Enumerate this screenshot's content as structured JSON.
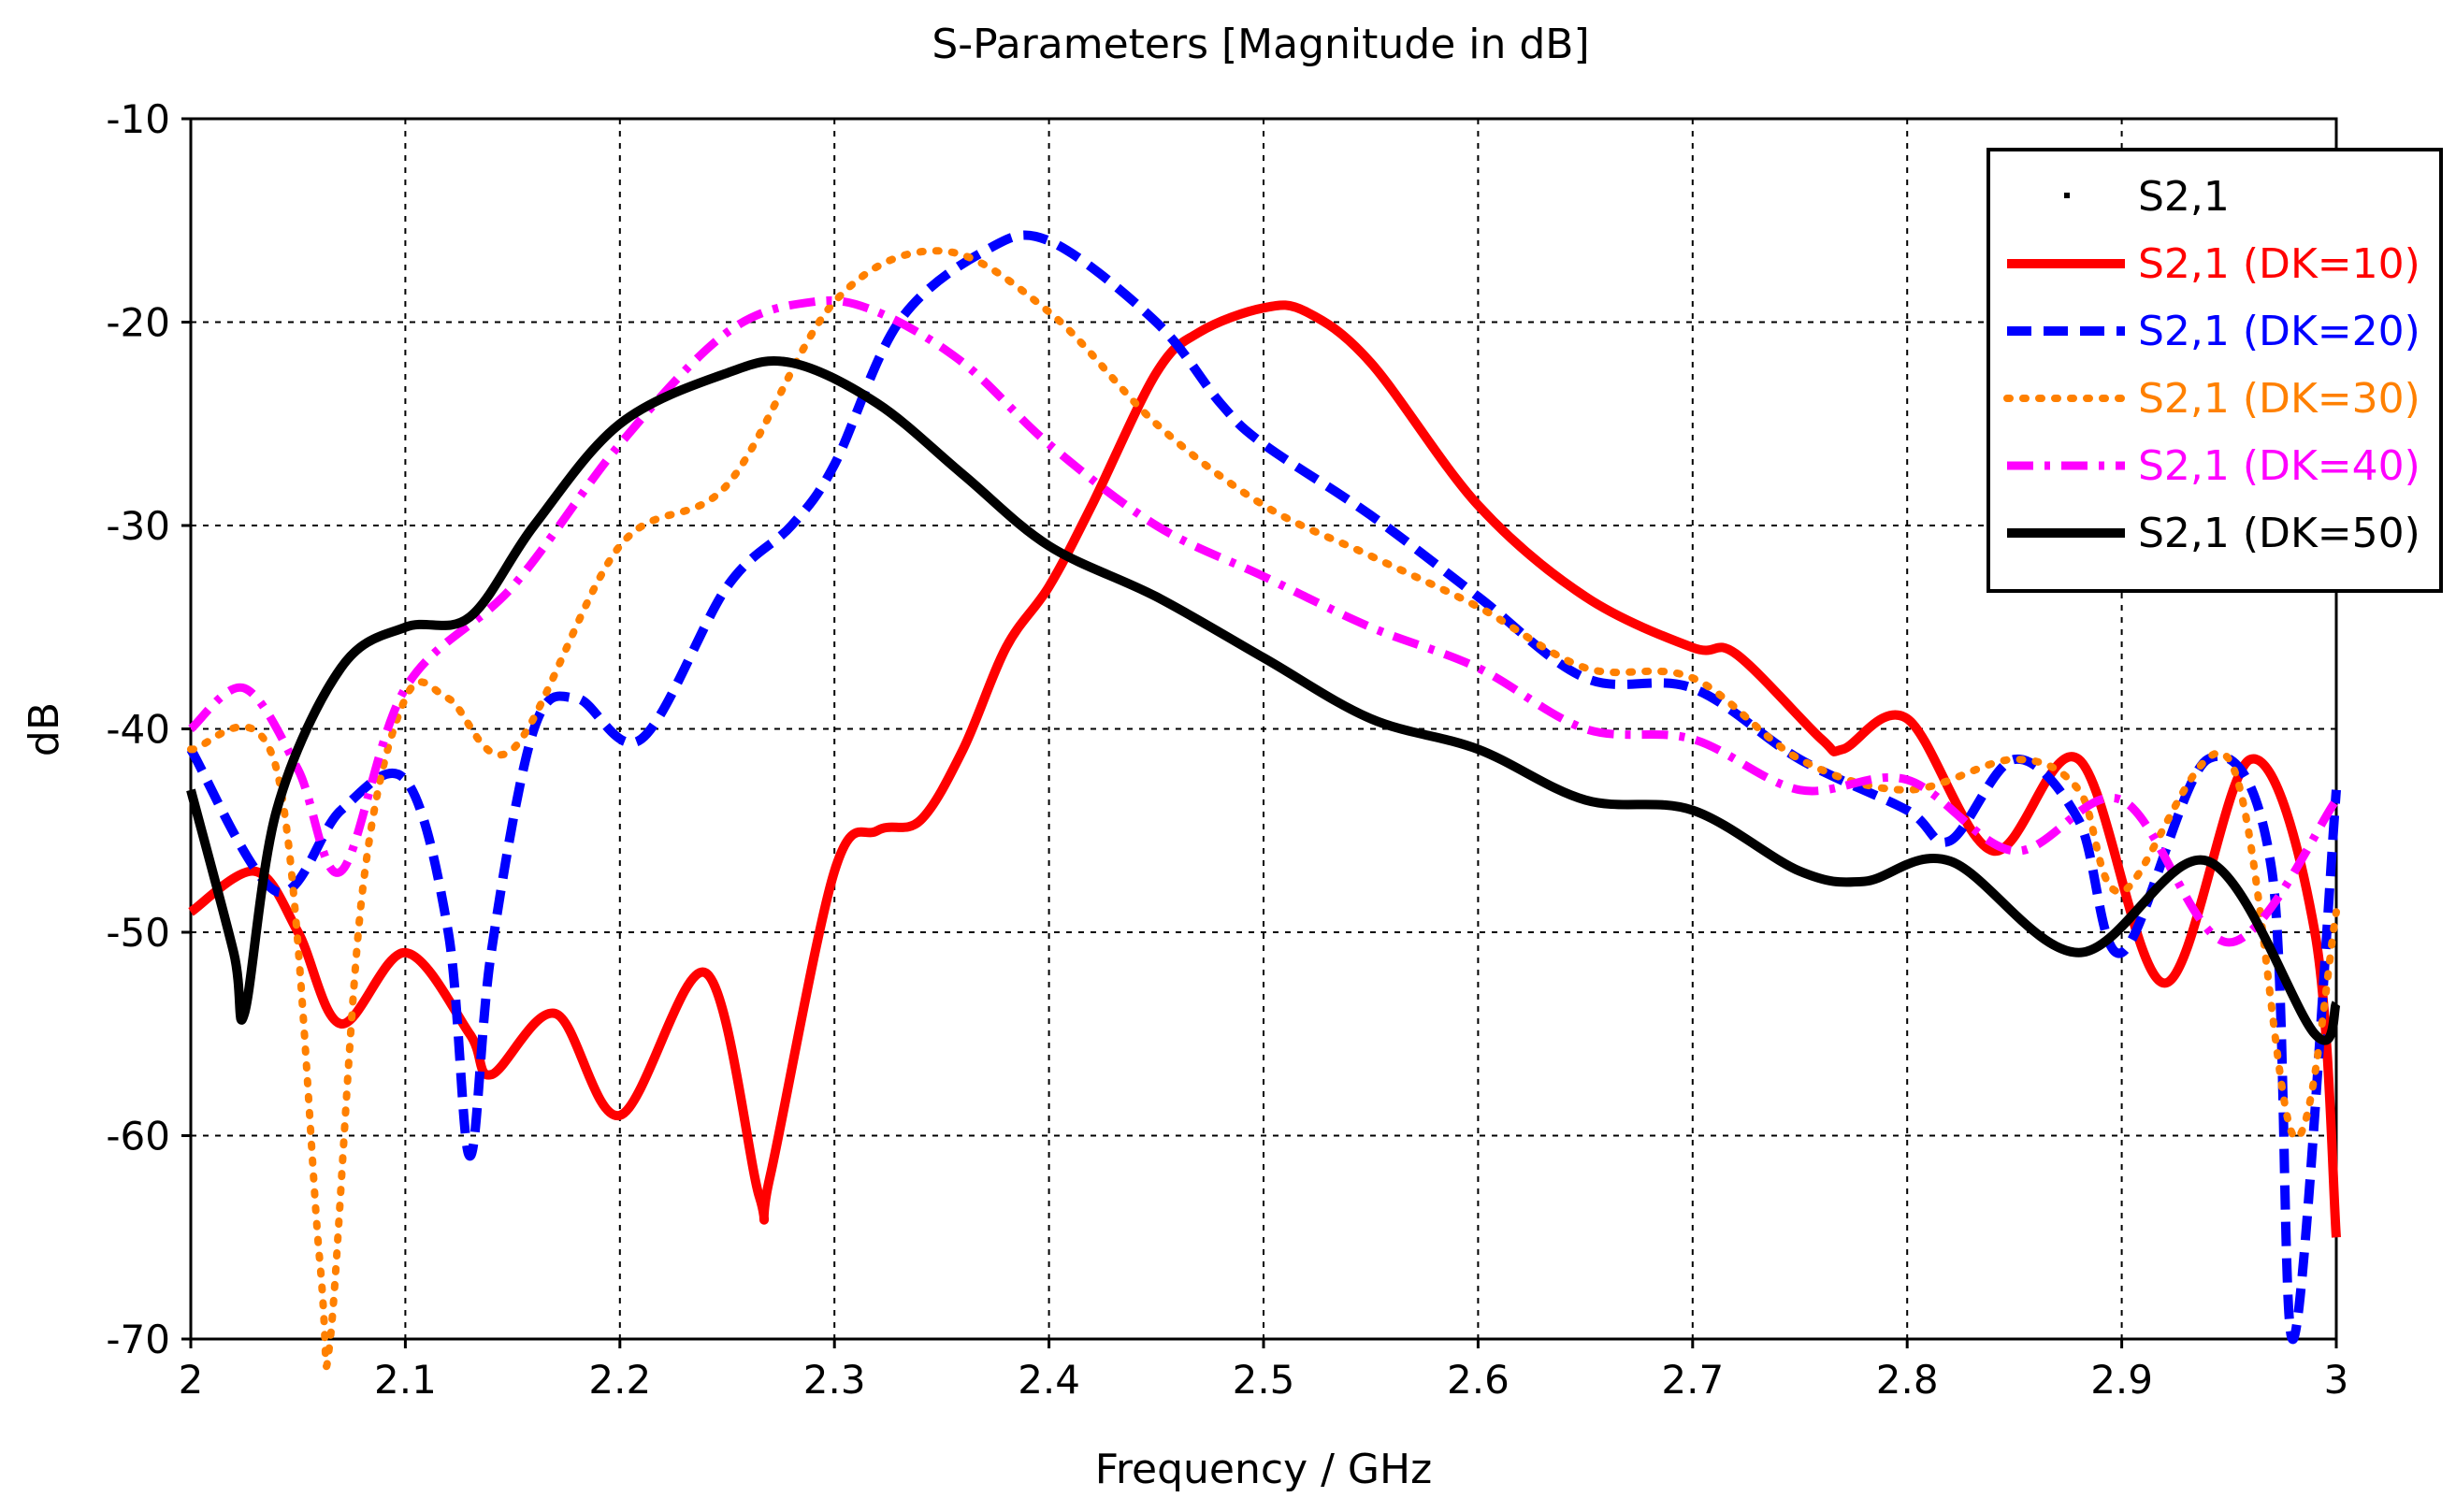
{
  "chart_data": {
    "type": "line",
    "title": "S-Parameters [Magnitude in dB]",
    "xlabel": "Frequency / GHz",
    "ylabel": "dB",
    "xlim": [
      2,
      3
    ],
    "ylim": [
      -70,
      -10
    ],
    "xticks": [
      "2",
      "2.1",
      "2.2",
      "2.3",
      "2.4",
      "2.5",
      "2.6",
      "2.7",
      "2.8",
      "2.9",
      "3"
    ],
    "yticks": [
      "-10",
      "-20",
      "-30",
      "-40",
      "-50",
      "-60",
      "-70"
    ],
    "grid": true,
    "legend_position": "top-right",
    "series": [
      {
        "name": "S2,1",
        "color": "#000000",
        "dash": "marker",
        "x": [],
        "y": []
      },
      {
        "name": "S2,1 (DK=10)",
        "color": "#ff0000",
        "dash": "solid",
        "x": [
          2.0,
          2.03,
          2.05,
          2.07,
          2.1,
          2.13,
          2.14,
          2.17,
          2.2,
          2.24,
          2.265,
          2.27,
          2.3,
          2.32,
          2.34,
          2.36,
          2.38,
          2.4,
          2.42,
          2.45,
          2.47,
          2.5,
          2.52,
          2.55,
          2.6,
          2.65,
          2.7,
          2.72,
          2.76,
          2.77,
          2.8,
          2.84,
          2.88,
          2.92,
          2.96,
          2.99,
          3.0
        ],
        "y": [
          -49,
          -47,
          -50,
          -54.5,
          -51,
          -55,
          -57,
          -54,
          -59,
          -52,
          -63,
          -62,
          -47,
          -45,
          -44.5,
          -41,
          -36,
          -33,
          -29,
          -22.5,
          -20.5,
          -19.3,
          -19.5,
          -22,
          -29,
          -33.5,
          -36,
          -36.3,
          -40.5,
          -41,
          -39.5,
          -46,
          -41.5,
          -52.5,
          -41.5,
          -50,
          -65
        ]
      },
      {
        "name": "S2,1 (DK=20)",
        "color": "#0000ff",
        "dash": "dashed",
        "x": [
          2.0,
          2.04,
          2.07,
          2.1,
          2.12,
          2.13,
          2.14,
          2.16,
          2.18,
          2.21,
          2.25,
          2.28,
          2.3,
          2.33,
          2.37,
          2.4,
          2.45,
          2.48,
          2.5,
          2.55,
          2.6,
          2.65,
          2.7,
          2.75,
          2.8,
          2.82,
          2.85,
          2.88,
          2.9,
          2.94,
          2.97,
          2.98,
          3.0
        ],
        "y": [
          -41,
          -48,
          -44,
          -42.5,
          -50,
          -61,
          -51,
          -40,
          -38.5,
          -40.5,
          -33,
          -30,
          -27,
          -20,
          -16.5,
          -16,
          -20,
          -24,
          -26,
          -29.5,
          -33.5,
          -37.5,
          -38,
          -41.5,
          -44,
          -45.5,
          -41.5,
          -44.5,
          -51,
          -41.5,
          -47,
          -70,
          -43
        ]
      },
      {
        "name": "S2,1 (DK=30)",
        "color": "#ff8000",
        "dash": "dotted",
        "x": [
          2.0,
          2.04,
          2.06,
          2.065,
          2.08,
          2.1,
          2.12,
          2.15,
          2.2,
          2.25,
          2.3,
          2.35,
          2.4,
          2.45,
          2.5,
          2.55,
          2.6,
          2.65,
          2.7,
          2.75,
          2.8,
          2.85,
          2.88,
          2.9,
          2.95,
          2.98,
          3.0
        ],
        "y": [
          -41,
          -42,
          -66,
          -70,
          -48,
          -38.5,
          -38.5,
          -41,
          -31,
          -28,
          -19,
          -16.5,
          -19.5,
          -25,
          -29,
          -31.5,
          -34,
          -37,
          -37.5,
          -41.5,
          -43,
          -41.5,
          -43,
          -48,
          -41.5,
          -60,
          -49
        ]
      },
      {
        "name": "S2,1 (DK=40)",
        "color": "#ff00ff",
        "dash": "dashdot",
        "x": [
          2.0,
          2.025,
          2.05,
          2.07,
          2.1,
          2.15,
          2.2,
          2.25,
          2.29,
          2.32,
          2.36,
          2.4,
          2.45,
          2.5,
          2.55,
          2.6,
          2.65,
          2.7,
          2.75,
          2.8,
          2.85,
          2.9,
          2.95,
          3.0
        ],
        "y": [
          -40,
          -38,
          -42,
          -47,
          -38,
          -33,
          -26,
          -20.5,
          -19,
          -19.5,
          -22,
          -26,
          -30,
          -32.5,
          -35,
          -37,
          -40,
          -40.5,
          -43,
          -42.5,
          -46,
          -43.5,
          -50.5,
          -43.5
        ]
      },
      {
        "name": "S2,1 (DK=50)",
        "color": "#000000",
        "dash": "solid",
        "x": [
          2.0,
          2.02,
          2.025,
          2.04,
          2.07,
          2.1,
          2.13,
          2.16,
          2.2,
          2.25,
          2.28,
          2.32,
          2.36,
          2.4,
          2.45,
          2.5,
          2.55,
          2.6,
          2.65,
          2.7,
          2.75,
          2.78,
          2.82,
          2.88,
          2.94,
          2.99,
          3.0
        ],
        "y": [
          -43,
          -51,
          -54,
          -44,
          -37,
          -35,
          -34.5,
          -30,
          -25,
          -22.5,
          -22,
          -24,
          -27.5,
          -31,
          -33.5,
          -36.5,
          -39.5,
          -41,
          -43.5,
          -44,
          -47,
          -47.5,
          -46.5,
          -51,
          -46.5,
          -55,
          -53.5
        ]
      }
    ]
  }
}
